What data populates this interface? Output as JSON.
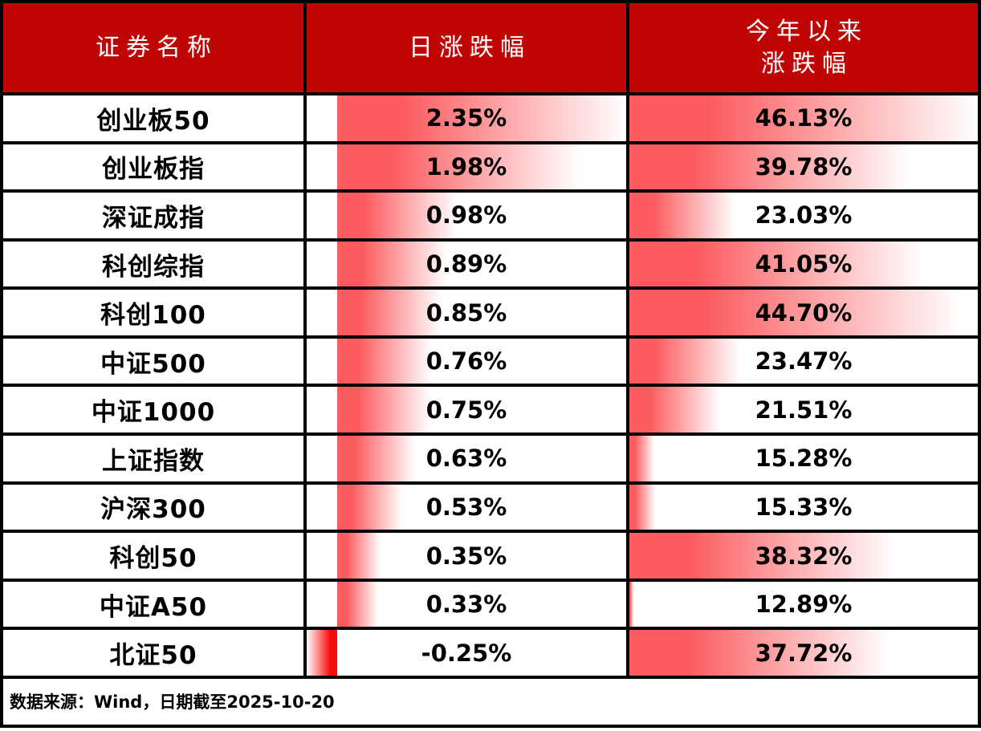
{
  "header": {
    "col_security": "证券名称",
    "col_daily": "日涨跌幅",
    "col_ytd_line1": "今年以来",
    "col_ytd_line2": "涨跌幅"
  },
  "rows": [
    {
      "name": "创业板50",
      "daily_label": "2.35%",
      "ytd_label": "46.13%"
    },
    {
      "name": "创业板指",
      "daily_label": "1.98%",
      "ytd_label": "39.78%"
    },
    {
      "name": "深证成指",
      "daily_label": "0.98%",
      "ytd_label": "23.03%"
    },
    {
      "name": "科创综指",
      "daily_label": "0.89%",
      "ytd_label": "41.05%"
    },
    {
      "name": "科创100",
      "daily_label": "0.85%",
      "ytd_label": "44.70%"
    },
    {
      "name": "中证500",
      "daily_label": "0.76%",
      "ytd_label": "23.47%"
    },
    {
      "name": "中证1000",
      "daily_label": "0.75%",
      "ytd_label": "21.51%"
    },
    {
      "name": "上证指数",
      "daily_label": "0.63%",
      "ytd_label": "15.28%"
    },
    {
      "name": "沪深300",
      "daily_label": "0.53%",
      "ytd_label": "15.33%"
    },
    {
      "name": "科创50",
      "daily_label": "0.35%",
      "ytd_label": "38.32%"
    },
    {
      "name": "中证A50",
      "daily_label": "0.33%",
      "ytd_label": "12.89%"
    },
    {
      "name": "北证50",
      "daily_label": "-0.25%",
      "ytd_label": "37.72%"
    }
  ],
  "footer": {
    "note": "数据来源：Wind，日期截至2025-10-20"
  },
  "colors": {
    "header_bg": "#c00505",
    "bar_positive": "#fb5a5e",
    "bar_negative": "#f90b0b",
    "border": "#000000",
    "header_text": "#ffffff",
    "body_text": "#000000"
  },
  "chart_data": {
    "type": "table",
    "title": "",
    "columns": [
      "证券名称",
      "日涨跌幅",
      "今年以来涨跌幅"
    ],
    "categories": [
      "创业板50",
      "创业板指",
      "深证成指",
      "科创综指",
      "科创100",
      "中证500",
      "中证1000",
      "上证指数",
      "沪深300",
      "科创50",
      "中证A50",
      "北证50"
    ],
    "series": [
      {
        "name": "日涨跌幅",
        "unit": "%",
        "values": [
          2.35,
          1.98,
          0.98,
          0.89,
          0.85,
          0.76,
          0.75,
          0.63,
          0.53,
          0.35,
          0.33,
          -0.25
        ]
      },
      {
        "name": "今年以来涨跌幅",
        "unit": "%",
        "values": [
          46.13,
          39.78,
          23.03,
          41.05,
          44.7,
          23.47,
          21.51,
          15.28,
          15.33,
          38.32,
          12.89,
          37.72
        ]
      }
    ],
    "databar_scaling": {
      "daily": {
        "min": -0.25,
        "max": 2.35,
        "axis": 0
      },
      "ytd": {
        "min": 12.89,
        "max": 46.13
      }
    },
    "annotations": [
      "数据来源：Wind，日期截至2025-10-20"
    ]
  }
}
